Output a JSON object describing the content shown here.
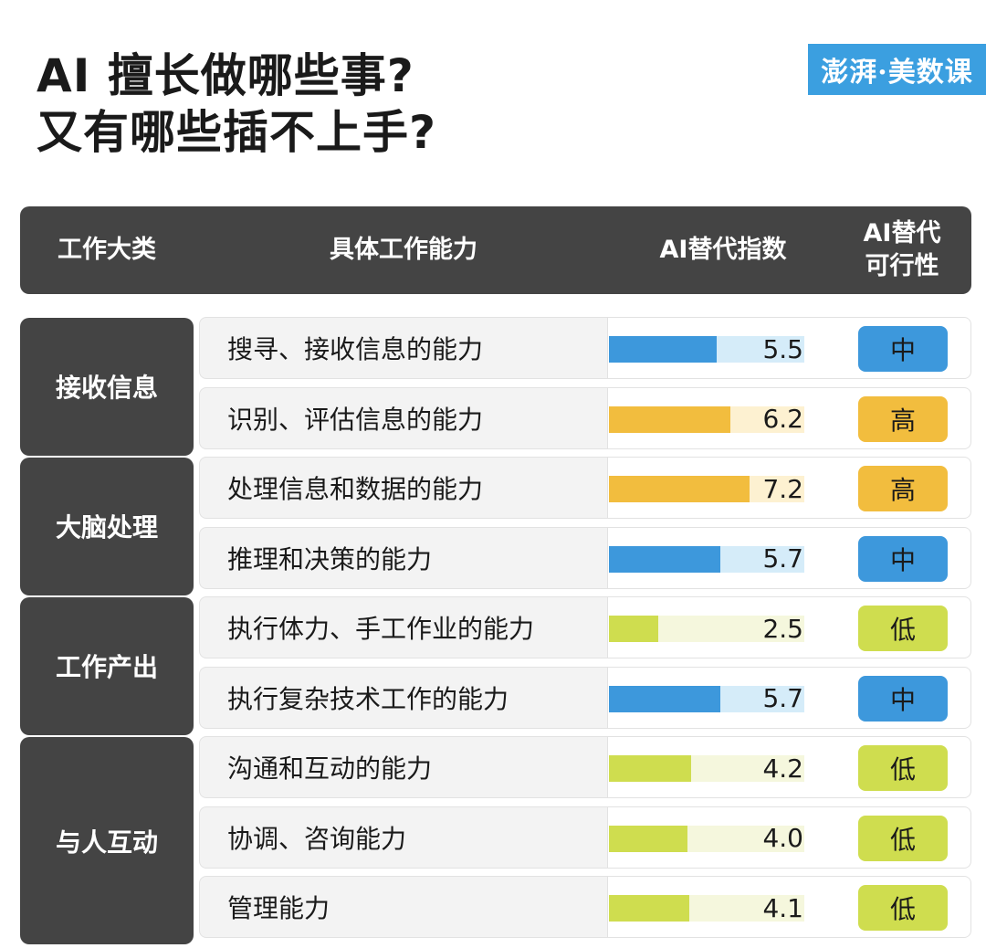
{
  "title": [
    "AI 擅长做哪些事?",
    "又有哪些插不上手?"
  ],
  "logo": "澎湃·美数课",
  "colors": {
    "blue": "#3d98dc",
    "blue_track": "#d5ecf9",
    "orange": "#f2bd3e",
    "orange_track": "#fdf1d1",
    "green": "#cfdd4f",
    "green_track": "#f5f7dd",
    "header_bg": "#444444"
  },
  "chart_data": {
    "type": "bar",
    "headers": [
      "工作大类",
      "具体工作能力",
      "AI替代指数",
      "AI替代\n可行性"
    ],
    "scale_max": 10,
    "groups": [
      {
        "name": "接收信息",
        "rows": [
          0,
          1
        ]
      },
      {
        "name": "大脑处理",
        "rows": [
          2,
          3
        ]
      },
      {
        "name": "工作产出",
        "rows": [
          4,
          5
        ]
      },
      {
        "name": "与人互动",
        "rows": [
          6,
          7,
          8
        ]
      }
    ],
    "rows": [
      {
        "skill": "搜寻、接收信息的能力",
        "value": 5.5,
        "value_label": "5.5",
        "feasibility": "中",
        "color": "blue"
      },
      {
        "skill": "识别、评估信息的能力",
        "value": 6.2,
        "value_label": "6.2",
        "feasibility": "高",
        "color": "orange"
      },
      {
        "skill": "处理信息和数据的能力",
        "value": 7.2,
        "value_label": "7.2",
        "feasibility": "高",
        "color": "orange"
      },
      {
        "skill": "推理和决策的能力",
        "value": 5.7,
        "value_label": "5.7",
        "feasibility": "中",
        "color": "blue"
      },
      {
        "skill": "执行体力、手工作业的能力",
        "value": 2.5,
        "value_label": "2.5",
        "feasibility": "低",
        "color": "green"
      },
      {
        "skill": "执行复杂技术工作的能力",
        "value": 5.7,
        "value_label": "5.7",
        "feasibility": "中",
        "color": "blue"
      },
      {
        "skill": "沟通和互动的能力",
        "value": 4.2,
        "value_label": "4.2",
        "feasibility": "低",
        "color": "green"
      },
      {
        "skill": "协调、咨询能力",
        "value": 4.0,
        "value_label": "4.0",
        "feasibility": "低",
        "color": "green"
      },
      {
        "skill": "管理能力",
        "value": 4.1,
        "value_label": "4.1",
        "feasibility": "低",
        "color": "green"
      }
    ]
  }
}
